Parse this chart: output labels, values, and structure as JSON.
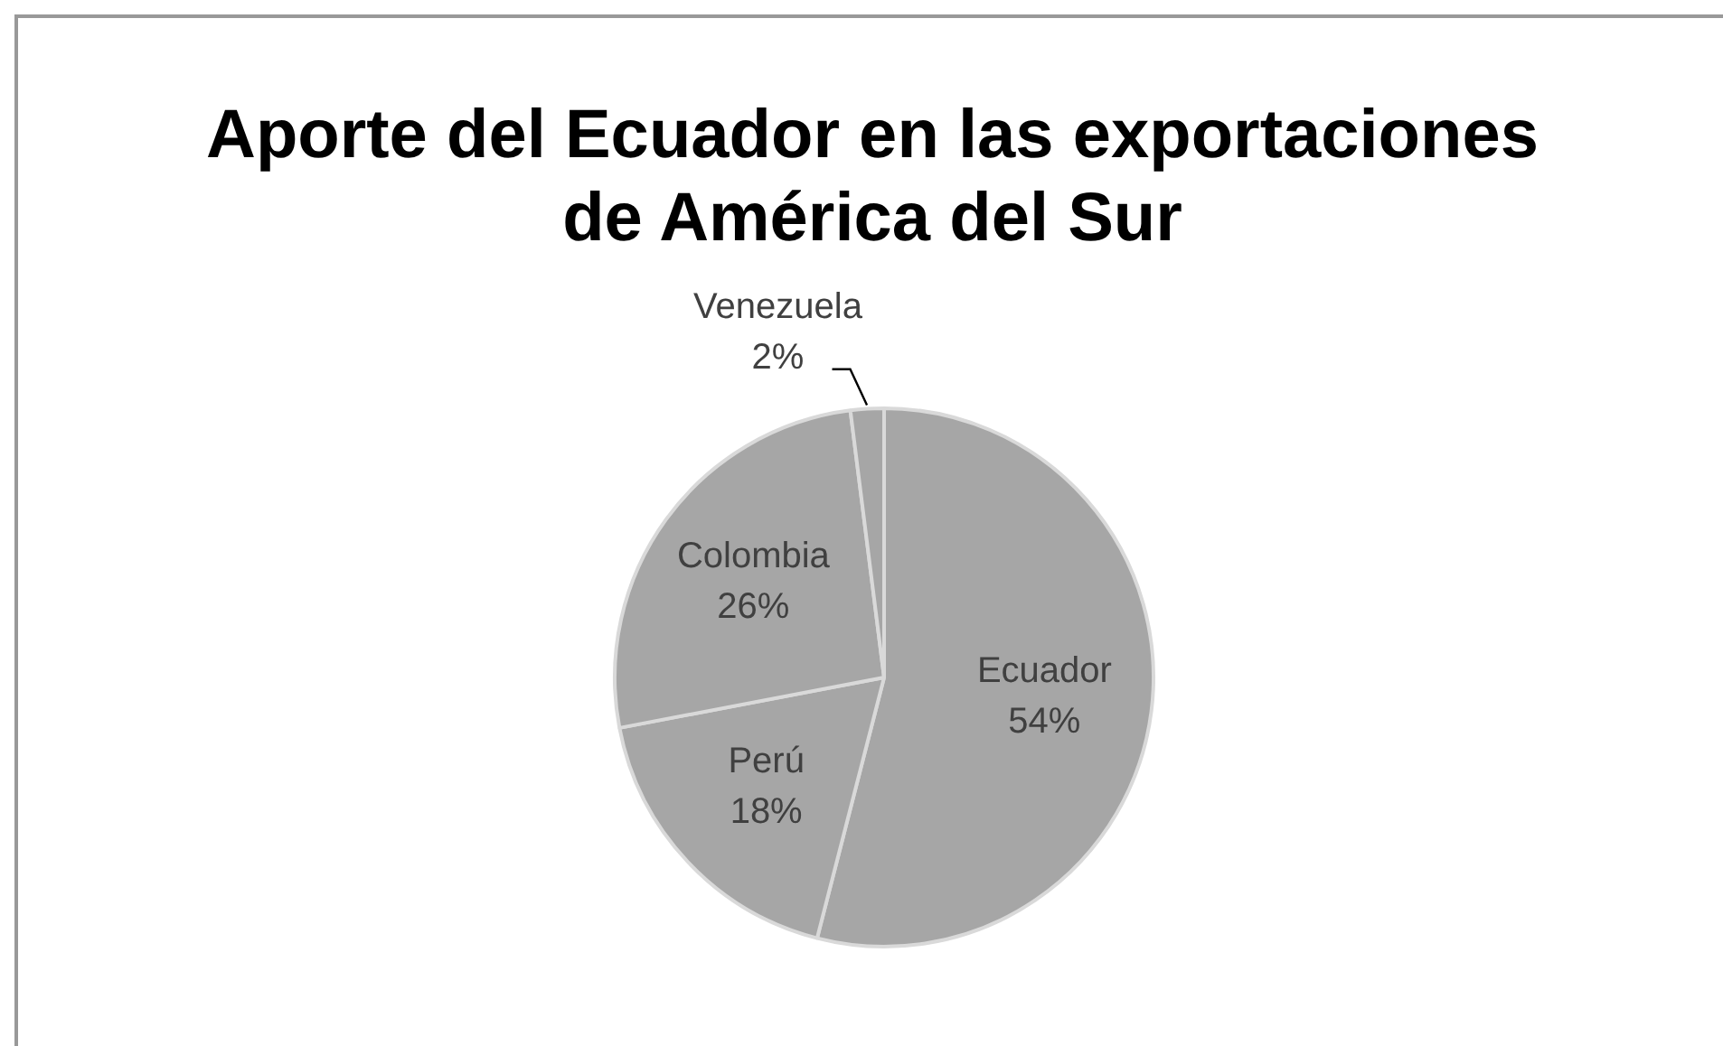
{
  "chart_data": {
    "type": "pie",
    "title": "Aporte del Ecuador en las exportaciones de América del Sur",
    "categories": [
      "Ecuador",
      "Perú",
      "Colombia",
      "Venezuela"
    ],
    "values": [
      54,
      18,
      26,
      2
    ],
    "colors": [
      "#a6a6a6",
      "#a6a6a6",
      "#a6a6a6",
      "#a6a6a6"
    ],
    "value_labels": [
      "54%",
      "18%",
      "26%",
      "2%"
    ],
    "legend": false
  }
}
